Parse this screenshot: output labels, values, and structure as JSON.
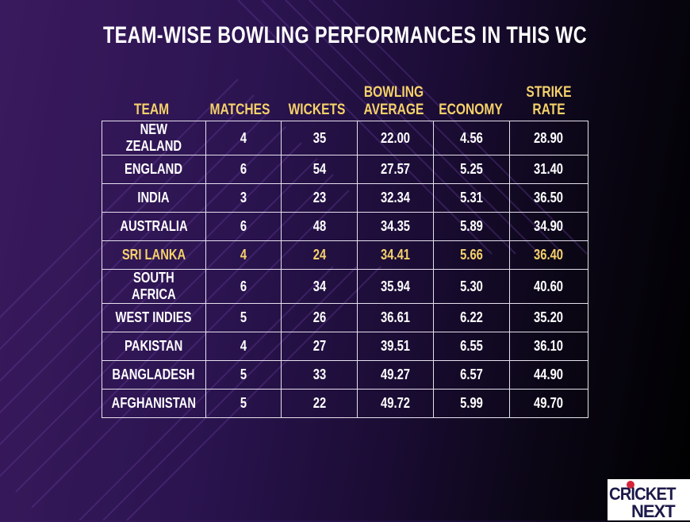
{
  "title": "TEAM-WISE BOWLING PERFORMANCES IN THIS WC",
  "columns": [
    "TEAM",
    "MATCHES",
    "WICKETS",
    "BOWLING AVERAGE",
    "ECONOMY",
    "STRIKE RATE"
  ],
  "rows": [
    [
      "NEW ZEALAND",
      "4",
      "35",
      "22.00",
      "4.56",
      "28.90"
    ],
    [
      "ENGLAND",
      "6",
      "54",
      "27.57",
      "5.25",
      "31.40"
    ],
    [
      "INDIA",
      "3",
      "23",
      "32.34",
      "5.31",
      "36.50"
    ],
    [
      "AUSTRALIA",
      "6",
      "48",
      "34.35",
      "5.89",
      "34.90"
    ],
    [
      "SRI LANKA",
      "4",
      "24",
      "34.41",
      "5.66",
      "36.40"
    ],
    [
      "SOUTH AFRICA",
      "6",
      "34",
      "35.94",
      "5.30",
      "40.60"
    ],
    [
      "WEST INDIES",
      "5",
      "26",
      "36.61",
      "6.22",
      "35.20"
    ],
    [
      "PAKISTAN",
      "4",
      "27",
      "39.51",
      "6.55",
      "36.10"
    ],
    [
      "BANGLADESH",
      "5",
      "33",
      "49.27",
      "6.57",
      "44.90"
    ],
    [
      "AFGHANISTAN",
      "5",
      "22",
      "49.72",
      "5.99",
      "49.70"
    ]
  ],
  "highlight_row": "SRI LANKA",
  "colors": {
    "header": "#f5d16a",
    "highlight": "#f5d16a",
    "text": "#ffffff",
    "logo_ball": "#d6253b"
  },
  "logo": {
    "line1": "CRICKET",
    "line2": "NEXT"
  }
}
